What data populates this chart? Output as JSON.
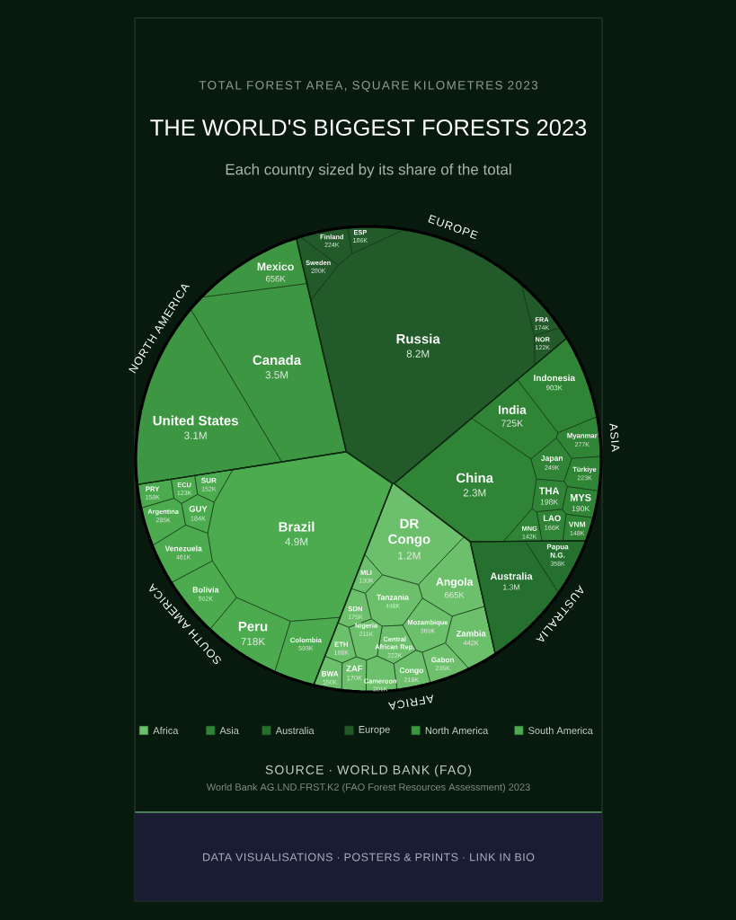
{
  "chart_data": {
    "type": "other",
    "title": "THE WORLD'S BIGGEST FORESTS 2023",
    "subtitle": "Each country sized by its share of the total",
    "annotations": [
      "TOTAL FOREST AREA, SQUARE KILOMETRES 2023",
      "SOURCE · WORLD BANK (FAO)",
      "World Bank AG.LND.FRST.K2 (FAO Forest Resources Assessment) 2023",
      "DATA VISUALISATIONS · POSTERS & PRINTS · LINK IN BIO",
      "EUROPE",
      "ASIA",
      "AUSTRALIA",
      "AFRICA",
      "SOUTH AMERICA",
      "NORTH AMERICA"
    ],
    "legend": "bottom",
    "categories": [
      "DR Congo",
      "Angola",
      "Tanzania",
      "Zambia",
      "Mozambique",
      "Gabon",
      "Central African Rep.",
      "Congo",
      "Nigeria",
      "Cameroon",
      "SDN",
      "ZAF",
      "ETH",
      "BWA",
      "MLI",
      "China",
      "Indonesia",
      "India",
      "Myanmar",
      "Japan",
      "Türkiye",
      "THA",
      "MYS",
      "LAO",
      "VNM",
      "MNG",
      "Australia",
      "Papua N.G.",
      "Russia",
      "Sweden",
      "Finland",
      "ESP",
      "FRA",
      "NOR",
      "Canada",
      "United States",
      "Mexico",
      "Brazil",
      "Peru",
      "Colombia",
      "Bolivia",
      "Venezuela",
      "Argentina",
      "GUY",
      "PRY",
      "SUR",
      "ECU"
    ],
    "series": [
      {
        "name": "Africa",
        "color": "#6cc06b",
        "values": [
          1200000,
          665000,
          448000,
          442000,
          360000,
          235000,
          222000,
          219000,
          211000,
          201000,
          175000,
          170000,
          168000,
          150000,
          130000,
          null,
          null,
          null,
          null,
          null,
          null,
          null,
          null,
          null,
          null,
          null,
          null,
          null,
          null,
          null,
          null,
          null,
          null,
          null,
          null,
          null,
          null,
          null,
          null,
          null,
          null,
          null,
          null,
          null,
          null,
          null,
          null
        ],
        "value_labels": [
          "1.2M",
          "665K",
          "448K",
          "442K",
          "360K",
          "235K",
          "222K",
          "219K",
          "211K",
          "201K",
          "175K",
          "170K",
          "168K",
          "150K",
          "130K",
          null,
          null,
          null,
          null,
          null,
          null,
          null,
          null,
          null,
          null,
          null,
          null,
          null,
          null,
          null,
          null,
          null,
          null,
          null,
          null,
          null,
          null,
          null,
          null,
          null,
          null,
          null,
          null,
          null,
          null,
          null,
          null
        ]
      },
      {
        "name": "Asia",
        "color": "#2f8535",
        "values": [
          null,
          null,
          null,
          null,
          null,
          null,
          null,
          null,
          null,
          null,
          null,
          null,
          null,
          null,
          null,
          2300000,
          903000,
          725000,
          277000,
          249000,
          223000,
          198000,
          190000,
          166000,
          148000,
          142000,
          null,
          null,
          null,
          null,
          null,
          null,
          null,
          null,
          null,
          null,
          null,
          null,
          null,
          null,
          null,
          null,
          null,
          null,
          null,
          null,
          null
        ],
        "value_labels": [
          null,
          null,
          null,
          null,
          null,
          null,
          null,
          null,
          null,
          null,
          null,
          null,
          null,
          null,
          null,
          "2.3M",
          "903K",
          "725K",
          "277K",
          "249K",
          "223K",
          "198K",
          "190K",
          "166K",
          "148K",
          "142K",
          null,
          null,
          null,
          null,
          null,
          null,
          null,
          null,
          null,
          null,
          null,
          null,
          null,
          null,
          null,
          null,
          null,
          null,
          null,
          null,
          null
        ]
      },
      {
        "name": "Australia",
        "color": "#26702f",
        "values": [
          null,
          null,
          null,
          null,
          null,
          null,
          null,
          null,
          null,
          null,
          null,
          null,
          null,
          null,
          null,
          null,
          null,
          null,
          null,
          null,
          null,
          null,
          null,
          null,
          null,
          null,
          1300000,
          358000,
          null,
          null,
          null,
          null,
          null,
          null,
          null,
          null,
          null,
          null,
          null,
          null,
          null,
          null,
          null,
          null,
          null,
          null,
          null
        ],
        "value_labels": [
          null,
          null,
          null,
          null,
          null,
          null,
          null,
          null,
          null,
          null,
          null,
          null,
          null,
          null,
          null,
          null,
          null,
          null,
          null,
          null,
          null,
          null,
          null,
          null,
          null,
          null,
          "1.3M",
          "358K",
          null,
          null,
          null,
          null,
          null,
          null,
          null,
          null,
          null,
          null,
          null,
          null,
          null,
          null,
          null,
          null,
          null,
          null,
          null
        ]
      },
      {
        "name": "Europe",
        "color": "#225a29",
        "values": [
          null,
          null,
          null,
          null,
          null,
          null,
          null,
          null,
          null,
          null,
          null,
          null,
          null,
          null,
          null,
          null,
          null,
          null,
          null,
          null,
          null,
          null,
          null,
          null,
          null,
          null,
          null,
          null,
          8200000,
          280000,
          224000,
          186000,
          174000,
          122000,
          null,
          null,
          null,
          null,
          null,
          null,
          null,
          null,
          null,
          null,
          null,
          null,
          null
        ],
        "value_labels": [
          null,
          null,
          null,
          null,
          null,
          null,
          null,
          null,
          null,
          null,
          null,
          null,
          null,
          null,
          null,
          null,
          null,
          null,
          null,
          null,
          null,
          null,
          null,
          null,
          null,
          null,
          null,
          null,
          "8.2M",
          "280K",
          "224K",
          "186K",
          "174K",
          "122K",
          null,
          null,
          null,
          null,
          null,
          null,
          null,
          null,
          null,
          null,
          null,
          null,
          null
        ]
      },
      {
        "name": "North America",
        "color": "#3d9641",
        "values": [
          null,
          null,
          null,
          null,
          null,
          null,
          null,
          null,
          null,
          null,
          null,
          null,
          null,
          null,
          null,
          null,
          null,
          null,
          null,
          null,
          null,
          null,
          null,
          null,
          null,
          null,
          null,
          null,
          null,
          null,
          null,
          null,
          null,
          null,
          3500000,
          3100000,
          656000,
          null,
          null,
          null,
          null,
          null,
          null,
          null,
          null,
          null,
          null
        ],
        "value_labels": [
          null,
          null,
          null,
          null,
          null,
          null,
          null,
          null,
          null,
          null,
          null,
          null,
          null,
          null,
          null,
          null,
          null,
          null,
          null,
          null,
          null,
          null,
          null,
          null,
          null,
          null,
          null,
          null,
          null,
          null,
          null,
          null,
          null,
          null,
          "3.5M",
          "3.1M",
          "656K",
          null,
          null,
          null,
          null,
          null,
          null,
          null,
          null,
          null,
          null
        ]
      },
      {
        "name": "South America",
        "color": "#4cab4f",
        "values": [
          null,
          null,
          null,
          null,
          null,
          null,
          null,
          null,
          null,
          null,
          null,
          null,
          null,
          null,
          null,
          null,
          null,
          null,
          null,
          null,
          null,
          null,
          null,
          null,
          null,
          null,
          null,
          null,
          null,
          null,
          null,
          null,
          null,
          null,
          null,
          null,
          null,
          4900000,
          718000,
          593000,
          502000,
          461000,
          285000,
          184000,
          158000,
          152000,
          123000
        ],
        "value_labels": [
          null,
          null,
          null,
          null,
          null,
          null,
          null,
          null,
          null,
          null,
          null,
          null,
          null,
          null,
          null,
          null,
          null,
          null,
          null,
          null,
          null,
          null,
          null,
          null,
          null,
          null,
          null,
          null,
          null,
          null,
          null,
          null,
          null,
          null,
          null,
          null,
          null,
          "4.9M",
          "718K",
          "593K",
          "502K",
          "461K",
          "285K",
          "184K",
          "158K",
          "152K",
          "123K"
        ]
      }
    ]
  }
}
